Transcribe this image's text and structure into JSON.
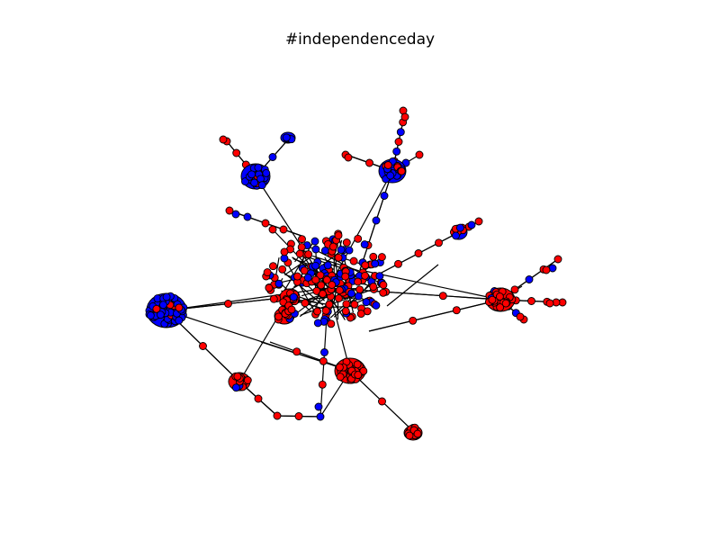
{
  "title": "#independenceday",
  "colors": {
    "red": "#ff0000",
    "blue": "#0000ff",
    "edge": "#000000"
  },
  "chart_data": {
    "type": "network",
    "title": "#independenceday",
    "node_colors": [
      "red",
      "blue"
    ]
  }
}
